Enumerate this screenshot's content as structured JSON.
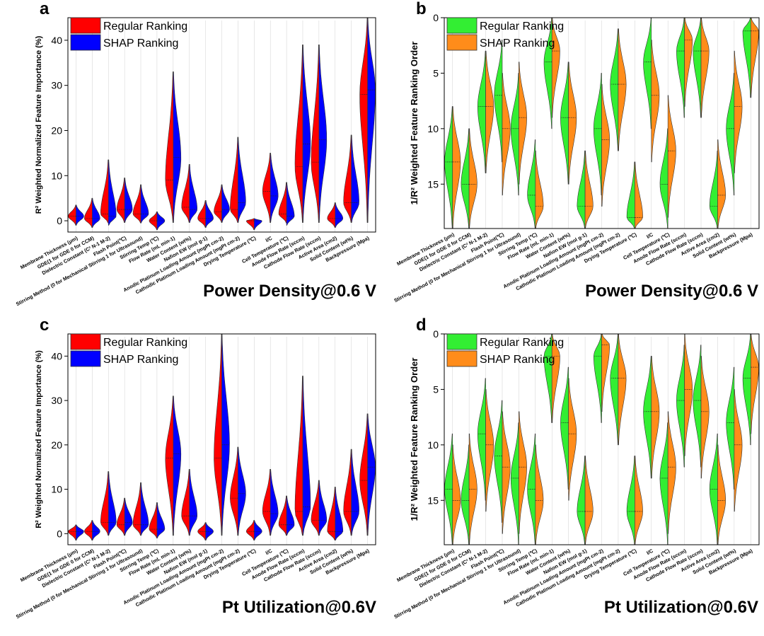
{
  "features": [
    "Membrane Thickness (μm)",
    "GDE(1 for GDE 0 for CCM)",
    "Dielectric Constant (C² N-1 M-2)",
    "Flash Point(℃)",
    "Stirring Method (0 for Mechanical Stirring 1 for Ultrasound)",
    "Stirring Temp (℃)",
    "Flow Rate (mL min-1)",
    "Water Content (wt%)",
    "Nafion EW (mol g-1)",
    "Anodic Platinum Loading Amount (mgPt cm-2)",
    "Cathodic Platinum Loading Amount (mgPt cm-2)",
    "Drying Temperature (℃)",
    "I/C",
    "Cell Temperature (℃)",
    "Anode Flow Rate (sccm)",
    "Cathode Flow Rate (sccm)",
    "Active Area (cm2)",
    "Solid Content (wt%)",
    "Backpressure (Mpa)"
  ],
  "chart_data": [
    {
      "type": "violin",
      "panel_letter": "a",
      "subtitle": "Power Density@0.6 V",
      "ylabel": "R² Weighted Normalized Feature Importance (%)",
      "ylim": [
        -2.5,
        45
      ],
      "yticks": [
        0,
        10,
        20,
        30,
        40
      ],
      "y_inverted": false,
      "series": [
        {
          "name": "Regular Ranking",
          "color": "#ff0000",
          "medians": [
            1.0,
            0.5,
            1.5,
            2.5,
            1.5,
            0.0,
            9.0,
            3.0,
            0.5,
            2.0,
            2.5,
            0.0,
            6.5,
            1.5,
            12.0,
            13.0,
            0.5,
            4.0,
            28.0
          ],
          "maxima": [
            3.5,
            5.0,
            13.5,
            9.5,
            8.0,
            2.0,
            33.0,
            12.5,
            4.5,
            8.0,
            18.5,
            0.5,
            15.0,
            8.5,
            39.0,
            39.0,
            4.0,
            19.0,
            45.0
          ]
        },
        {
          "name": "SHAP Ranking",
          "color": "#0000ff",
          "medians": [
            1.0,
            0.5,
            1.0,
            2.5,
            1.5,
            0.0,
            14.0,
            2.5,
            0.5,
            2.5,
            4.0,
            0.0,
            5.5,
            1.0,
            17.0,
            18.0,
            0.5,
            4.0,
            29.0
          ]
        }
      ],
      "legend_position": "top-left"
    },
    {
      "type": "violin",
      "panel_letter": "b",
      "subtitle": "Power Density@0.6 V",
      "ylabel": "1/R² Weighted Feature Ranking Order",
      "ylim": [
        0,
        19
      ],
      "yticks": [
        0,
        5,
        10,
        15
      ],
      "y_inverted": true,
      "series": [
        {
          "name": "Regular Ranking",
          "color": "#33ee33",
          "medians": [
            13,
            15,
            8,
            7,
            10,
            16,
            4,
            9,
            17,
            10,
            6,
            18,
            4,
            15,
            3,
            3,
            17,
            10,
            1.2
          ]
        },
        {
          "name": "SHAP Ranking",
          "color": "#ff8c1a",
          "medians": [
            13,
            15,
            8,
            10,
            9,
            17,
            3,
            9,
            17,
            11,
            6,
            18,
            7,
            12,
            2,
            3,
            16,
            8,
            1.2
          ]
        }
      ],
      "legend_position": "top-left"
    },
    {
      "type": "violin",
      "panel_letter": "c",
      "subtitle": "Pt Utilization@0.6V",
      "ylabel": "R² Weighted Normalized Feature Importance (%)",
      "ylim": [
        -2.5,
        45
      ],
      "yticks": [
        0,
        10,
        20,
        30,
        40
      ],
      "y_inverted": false,
      "series": [
        {
          "name": "Regular Ranking",
          "color": "#ff0000",
          "medians": [
            0.5,
            0.5,
            2.5,
            2.0,
            2.0,
            1.0,
            17.0,
            4.0,
            0.5,
            17.0,
            8.0,
            0.5,
            5.0,
            2.0,
            5.0,
            3.0,
            0.5,
            5.0,
            12.0
          ],
          "maxima": [
            2.0,
            3.0,
            14.0,
            8.0,
            11.5,
            7.0,
            31.0,
            14.5,
            2.5,
            45.0,
            19.5,
            3.0,
            14.5,
            8.5,
            35.5,
            12.0,
            10.5,
            19.0,
            27.0
          ]
        },
        {
          "name": "SHAP Ranking",
          "color": "#0000ff",
          "medians": [
            0.5,
            0.5,
            2.5,
            2.5,
            2.0,
            1.0,
            18.0,
            4.0,
            0.5,
            20.0,
            9.0,
            0.5,
            4.5,
            2.0,
            6.0,
            3.0,
            0.5,
            5.0,
            15.0
          ]
        }
      ],
      "legend_position": "top-left"
    },
    {
      "type": "violin",
      "panel_letter": "d",
      "subtitle": "Pt Utilization@0.6V",
      "ylabel": "1/R² Weighted Feature Ranking Order",
      "ylim": [
        0,
        19
      ],
      "yticks": [
        0,
        5,
        10,
        15
      ],
      "y_inverted": true,
      "series": [
        {
          "name": "Regular Ranking",
          "color": "#33ee33",
          "medians": [
            14,
            15,
            9,
            11,
            13,
            14,
            2,
            8,
            16,
            2,
            4,
            16,
            7,
            13,
            6,
            6,
            14,
            8,
            4
          ]
        },
        {
          "name": "SHAP Ranking",
          "color": "#ff8c1a",
          "medians": [
            15,
            14,
            10,
            12,
            12,
            15,
            2,
            9,
            16,
            1,
            4,
            16,
            7,
            12,
            5,
            7,
            15,
            10,
            3
          ]
        }
      ],
      "legend_position": "top-left"
    }
  ]
}
